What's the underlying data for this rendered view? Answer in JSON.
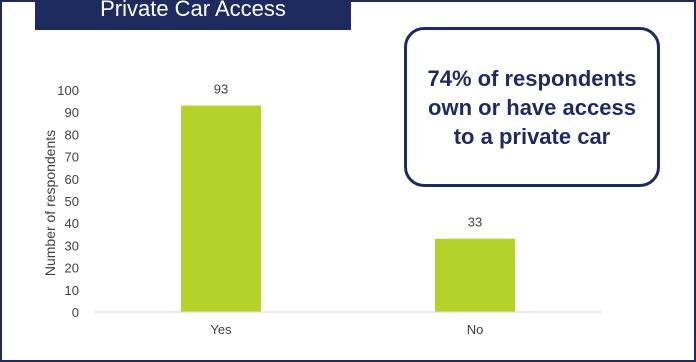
{
  "header": {
    "title": "Private Car Access"
  },
  "callout": {
    "text": "74% of respondents own or have access to a private car"
  },
  "colors": {
    "bar": "#b5d22b",
    "frame": "#1d2b5e",
    "axis_text": "#404040"
  },
  "chart_data": {
    "type": "bar",
    "title": "Private Car Access",
    "categories": [
      "Yes",
      "No"
    ],
    "values": [
      93,
      33
    ],
    "data_labels": [
      "93",
      "33"
    ],
    "xlabel": "",
    "ylabel": "Number of respondents",
    "ylim": [
      0,
      100
    ],
    "yticks": [
      0,
      10,
      20,
      30,
      40,
      50,
      60,
      70,
      80,
      90,
      100
    ],
    "grid": false,
    "legend": "none"
  }
}
